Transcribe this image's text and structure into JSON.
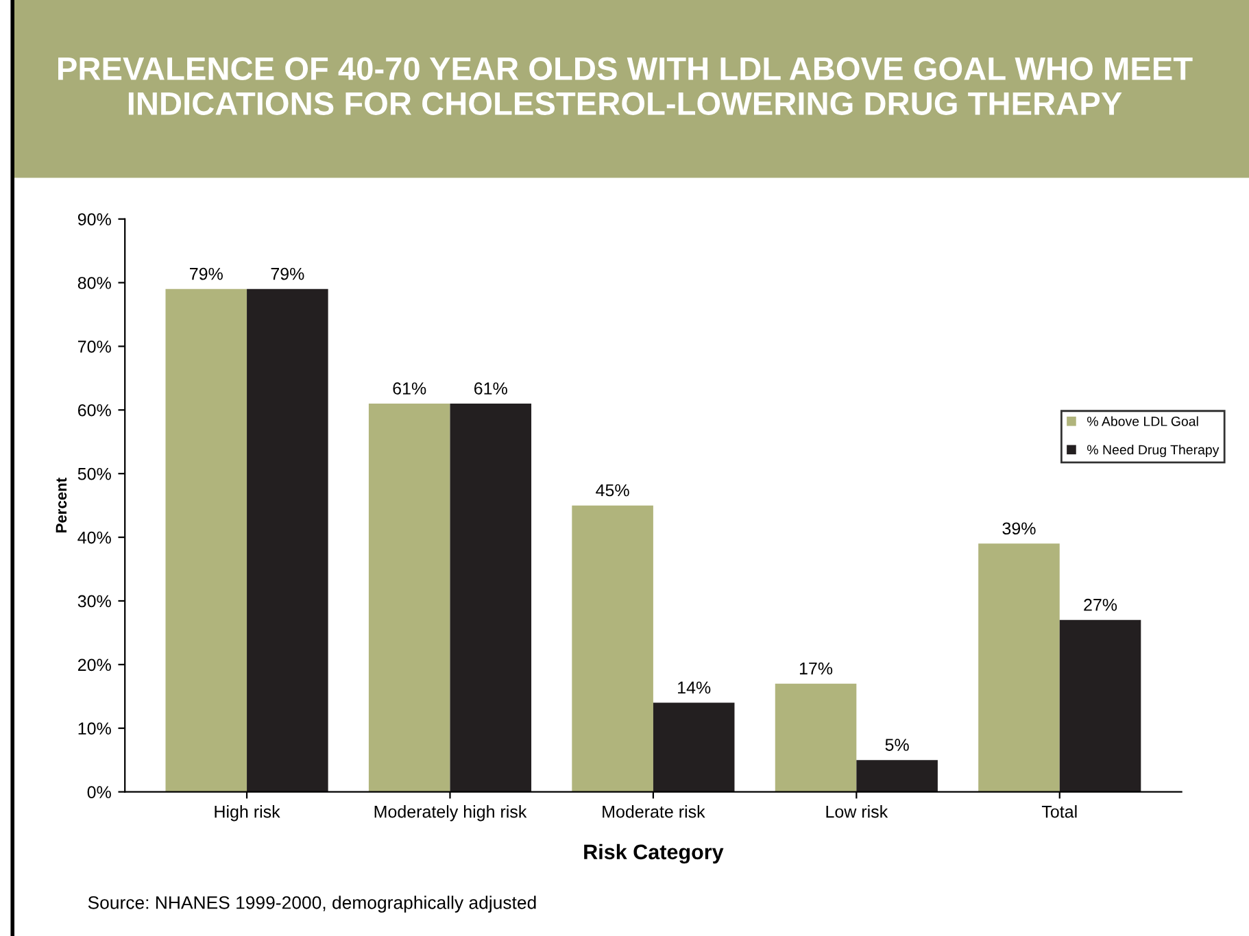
{
  "chart_data": {
    "type": "bar",
    "title": "PREVALENCE OF 40-70 YEAR OLDS WITH LDL ABOVE GOAL WHO MEET INDICATIONS FOR CHOLESTEROL-LOWERING DRUG THERAPY",
    "xlabel": "Risk Category",
    "ylabel": "Percent",
    "categories": [
      "High risk",
      "Moderately high risk",
      "Moderate risk",
      "Low risk",
      "Total"
    ],
    "series": [
      {
        "name": "% Above LDL Goal",
        "color": "#b0b47c",
        "values": [
          79,
          61,
          45,
          17,
          39
        ],
        "value_labels": [
          "79%",
          "61%",
          "45%",
          "17%",
          "39%"
        ]
      },
      {
        "name": "% Need Drug Therapy",
        "color": "#231f20",
        "values": [
          79,
          61,
          14,
          5,
          27
        ],
        "value_labels": [
          "79%",
          "61%",
          "14%",
          "5%",
          "27%"
        ]
      }
    ],
    "ylim": [
      0,
      90
    ],
    "yticks": [
      {
        "value": 0,
        "label": "0%"
      },
      {
        "value": 10,
        "label": "10%"
      },
      {
        "value": 20,
        "label": "20%"
      },
      {
        "value": 30,
        "label": "30%"
      },
      {
        "value": 40,
        "label": "40%"
      },
      {
        "value": 50,
        "label": "50%"
      },
      {
        "value": 60,
        "label": "60%"
      },
      {
        "value": 70,
        "label": "70%"
      },
      {
        "value": 80,
        "label": "80%"
      },
      {
        "value": 90,
        "label": "90%"
      }
    ],
    "grid": false,
    "legend": "right",
    "annotations": [
      "Source: NHANES 1999-2000, demographically adjusted"
    ]
  }
}
